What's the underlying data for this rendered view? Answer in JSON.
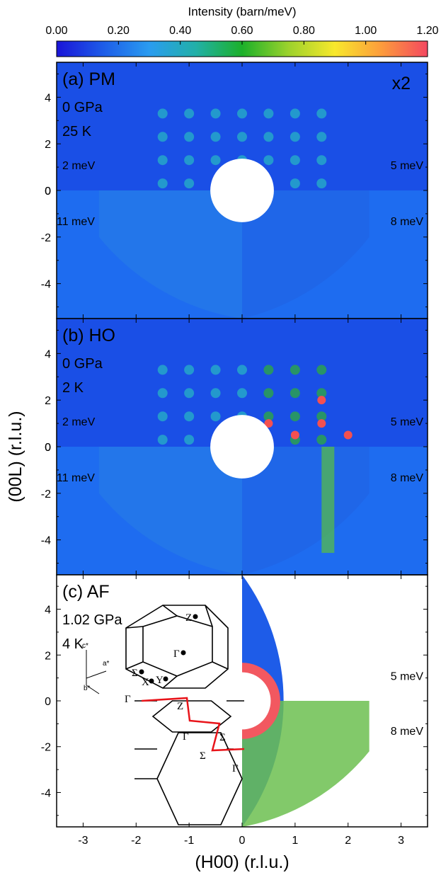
{
  "chart_data": {
    "type": "heatmap",
    "colorbar": {
      "title": "Intensity (barn/meV)",
      "min": 0,
      "max": 1.2,
      "ticks": [
        "0.00",
        "0.20",
        "0.40",
        "0.60",
        "0.80",
        "1.00",
        "1.20"
      ],
      "colors": [
        "#1a14d8",
        "#1e5ce8",
        "#2a9cf0",
        "#22b0a8",
        "#1cb02a",
        "#9cd22c",
        "#f8e82c",
        "#fc9c3c",
        "#f44860"
      ]
    },
    "xlabel": "(H00)  (r.l.u.)",
    "ylabel": "(00L)  (r.l.u.)",
    "xlim": [
      -3.5,
      3.5
    ],
    "ylim": [
      -5.5,
      5.5
    ],
    "xticks": [
      "-3",
      "-2",
      "-1",
      "0",
      "1",
      "2",
      "3"
    ],
    "yticks": [
      "-4",
      "-2",
      "0",
      "2",
      "4"
    ],
    "panels": [
      {
        "label": "(a) PM",
        "pressure": "0 GPa",
        "temperature": "25 K",
        "scale_note": "x2",
        "energies": {
          "upper_left": "2 meV",
          "upper_right": "5 meV",
          "lower_left": "11 meV",
          "lower_right": "8 meV"
        }
      },
      {
        "label": "(b) HO",
        "pressure": "0 GPa",
        "temperature": "2 K",
        "energies": {
          "upper_left": "2 meV",
          "upper_right": "5 meV",
          "lower_left": "11 meV",
          "lower_right": "8 meV"
        }
      },
      {
        "label": "(c) AF",
        "pressure": "1.02 GPa",
        "temperature": "4 K",
        "energies": {
          "upper_right": "5 meV",
          "lower_right": "8 meV"
        },
        "brillouin_zone": {
          "points": [
            "Z",
            "Γ",
            "Σ",
            "X",
            "Y"
          ],
          "axes": [
            "c*",
            "a*",
            "b*"
          ],
          "path_labels": [
            "Γ",
            "Z",
            "Γ",
            "Σ",
            "Σ",
            "Γ"
          ]
        }
      }
    ]
  }
}
